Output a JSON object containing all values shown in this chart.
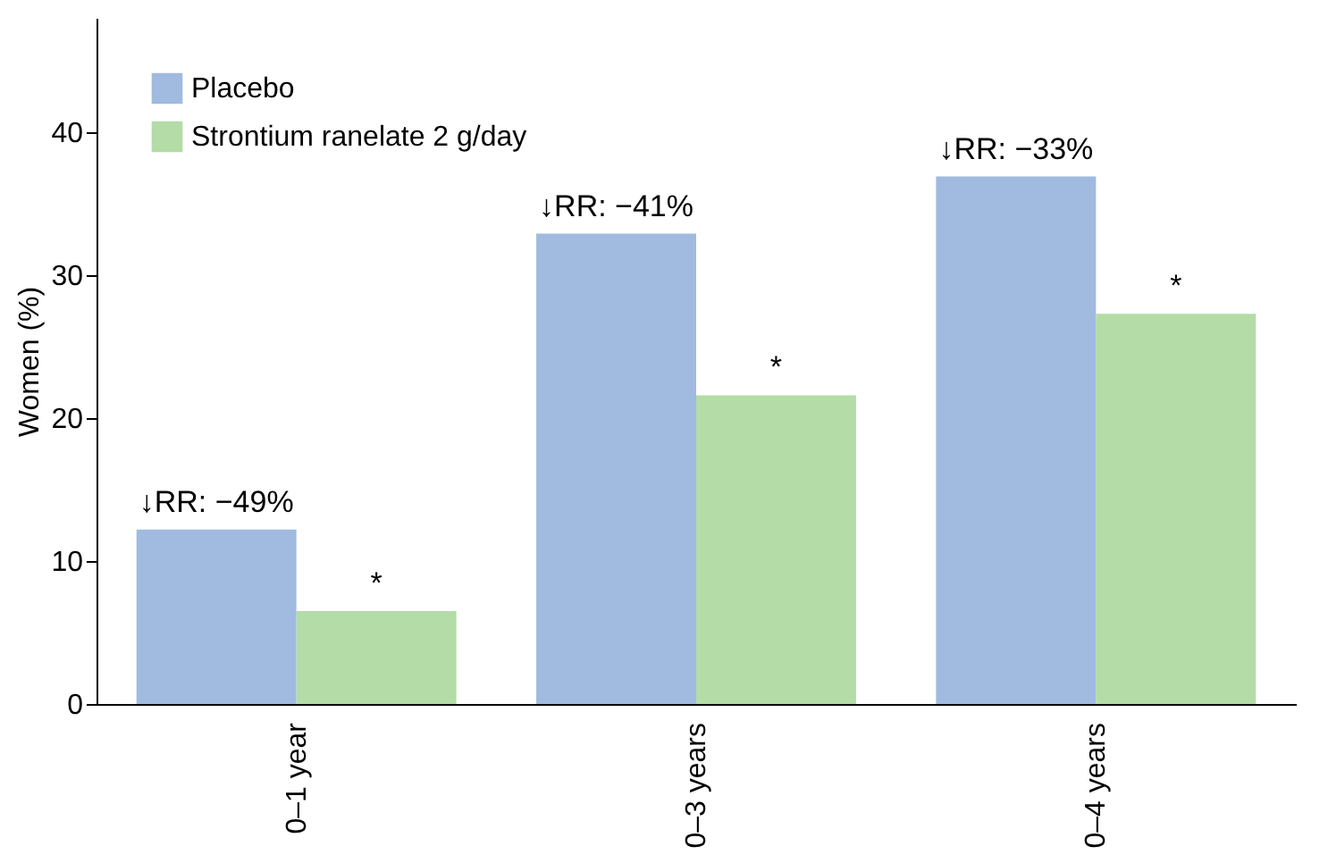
{
  "chart_data": {
    "type": "bar",
    "ylabel": "Women (%)",
    "categories": [
      "0–1 year",
      "0–3 years",
      "0–4 years"
    ],
    "series": [
      {
        "name": "Placebo",
        "color": "#a0bae0",
        "values": [
          12.2,
          32.9,
          36.9
        ]
      },
      {
        "name": "Strontium ranelate 2 g/day",
        "color": "#b3dca6",
        "values": [
          6.5,
          21.6,
          27.3
        ]
      }
    ],
    "ylim": [
      0,
      48
    ],
    "yticks": [
      0,
      10,
      20,
      30,
      40
    ],
    "grid": false,
    "legend": "top left",
    "annotations": [
      {
        "text": "↓RR: −49%",
        "x": "0–1 year",
        "y": 12.2
      },
      {
        "text": "*",
        "x": "0–1 year",
        "y": 6.5
      },
      {
        "text": "↓RR: −41%",
        "x": "0–3 years",
        "y": 32.9
      },
      {
        "text": "*",
        "x": "0–3 years",
        "y": 21.6
      },
      {
        "text": "↓RR: −33%",
        "x": "0–4 years",
        "y": 36.9
      },
      {
        "text": "*",
        "x": "0–4 years",
        "y": 27.3
      }
    ]
  }
}
